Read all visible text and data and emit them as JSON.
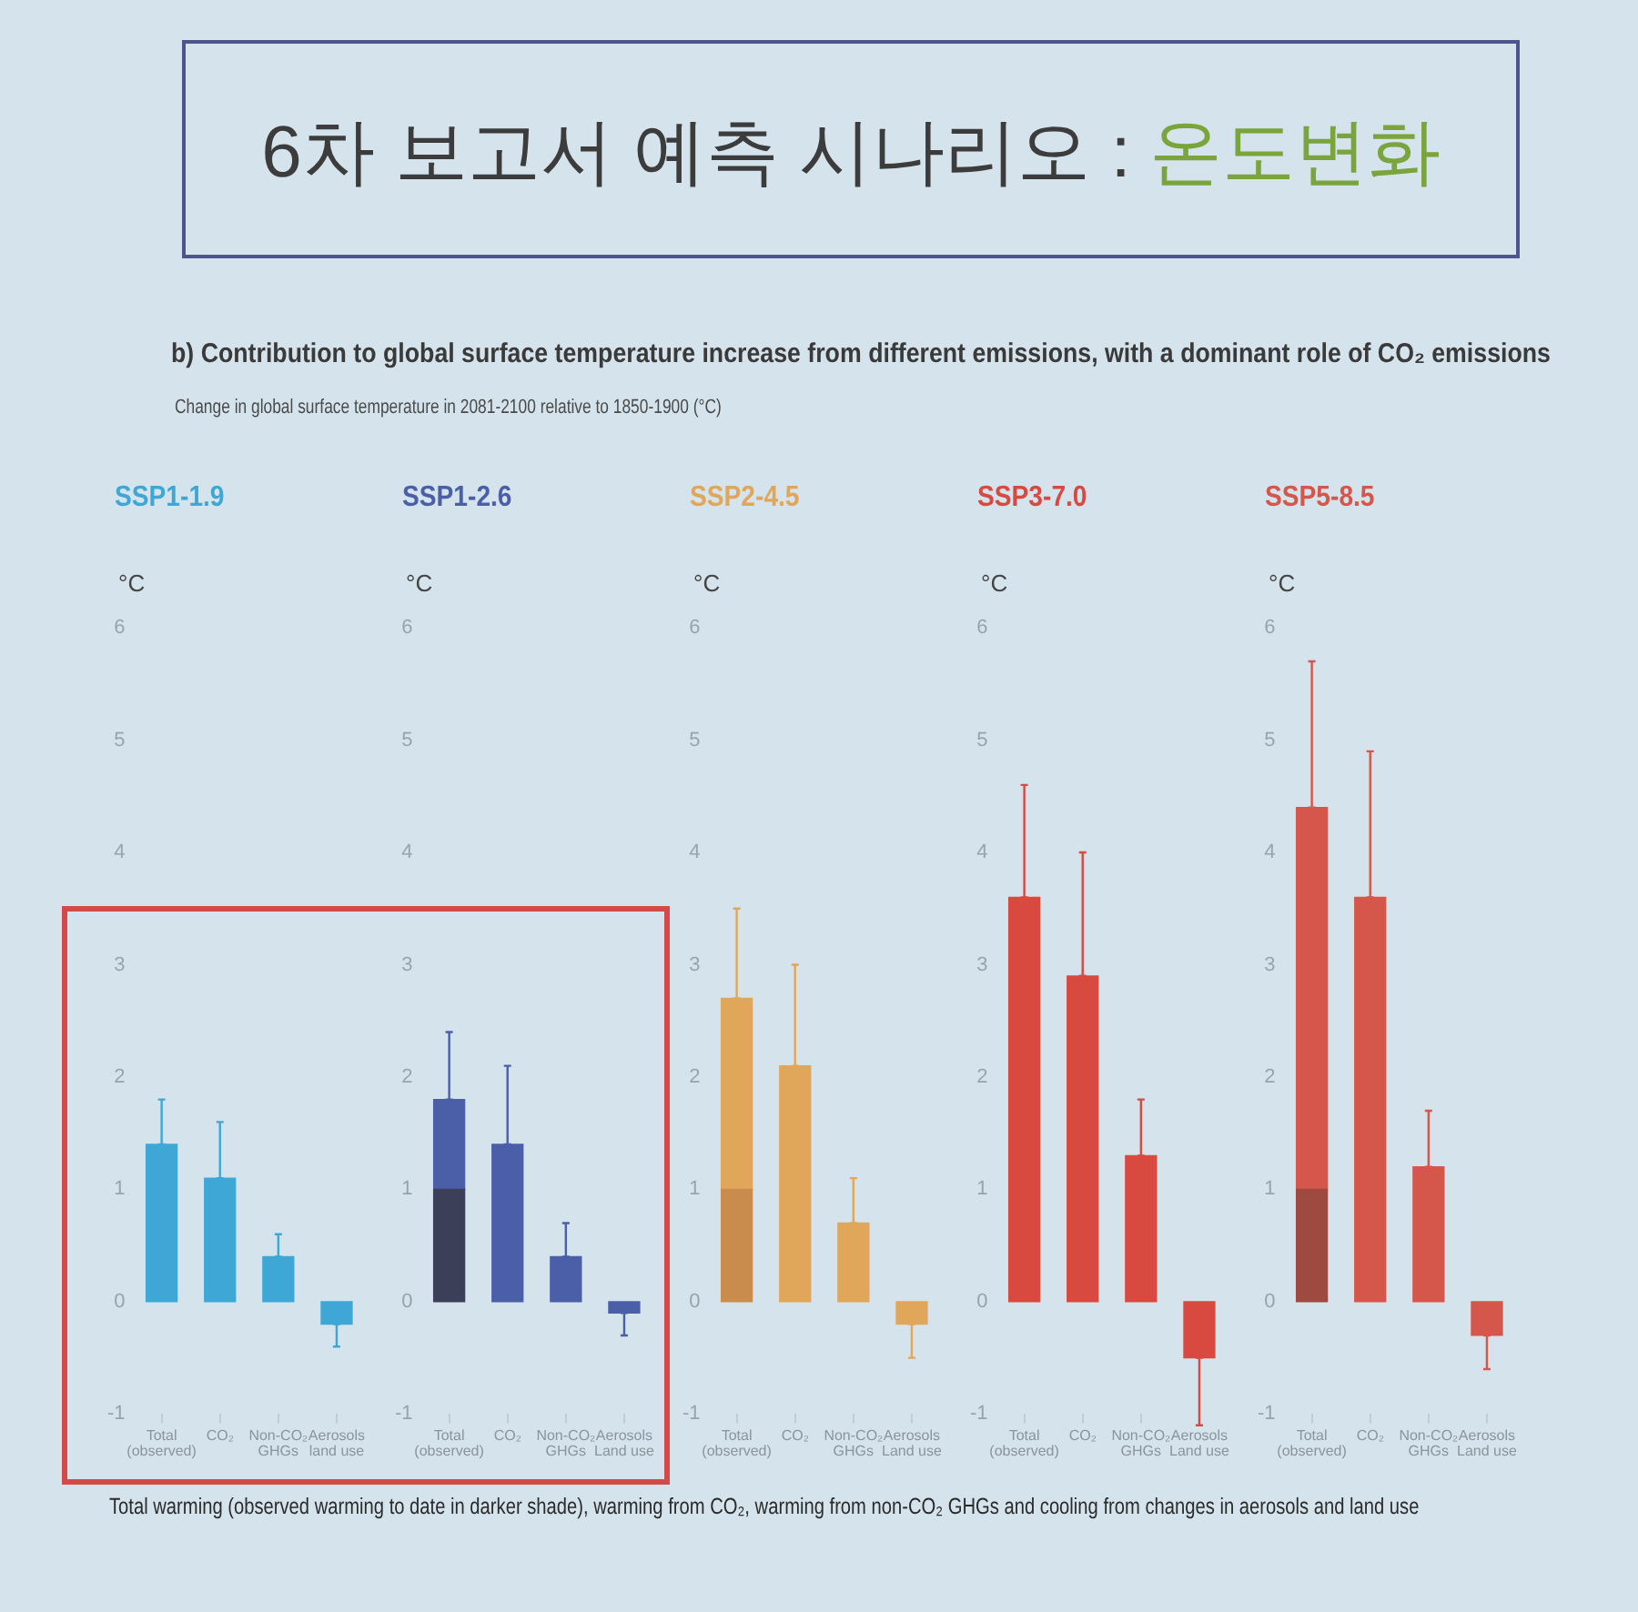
{
  "chart_data": [
    {
      "type": "other",
      "title": "6차 보고서 예측 시나리오 : 온도변화",
      "subtitle": "b) Contribution to global surface temperature increase from different emissions, with a dominant role of CO₂ emissions",
      "annotations": [
        "Change in global surface temperature in 2081-2100 relative to 1850-1900 (°C)"
      ]
    },
    {
      "type": "bar",
      "title": "SSP1-1.9",
      "ylabel": "°C",
      "categories": [
        "Total\n(observed)",
        "CO₂",
        "Non-CO₂\nGHGs",
        "Aerosols\nland use"
      ],
      "series": [
        {
          "color": "#3fa7d6",
          "values": [
            1.4,
            1.1,
            0.4,
            -0.2
          ],
          "errors": [
            [
              1.4,
              1.8
            ],
            [
              1.1,
              1.6
            ],
            [
              0.4,
              0.6
            ],
            [
              -0.4,
              -0.2
            ]
          ]
        }
      ],
      "ylim": [
        -1,
        6
      ],
      "yticks": [
        -1,
        0,
        1,
        2,
        3,
        4,
        5,
        6
      ]
    },
    {
      "type": "bar",
      "title": "SSP1-2.6",
      "ylabel": "°C",
      "categories": [
        "Total\n(observed)",
        "CO₂",
        "Non-CO₂\nGHGs",
        "Aerosols\nLand use"
      ],
      "stacked": true,
      "series": [
        {
          "color": "#3b3f58",
          "values": [
            1.0,
            null,
            null,
            null
          ]
        },
        {
          "color": "#4a5fa8",
          "values": [
            0.8,
            1.4,
            0.4,
            -0.1
          ],
          "errors": [
            [
              1.8,
              2.4
            ],
            [
              1.4,
              2.1
            ],
            [
              0.4,
              0.7
            ],
            [
              -0.3,
              -0.1
            ]
          ]
        }
      ],
      "ylim": [
        -1,
        6
      ],
      "yticks": [
        -1,
        0,
        1,
        2,
        3,
        4,
        5,
        6
      ]
    },
    {
      "type": "bar",
      "title": "SSP2-4.5",
      "ylabel": "°C",
      "categories": [
        "Total\n(observed)",
        "CO₂",
        "Non-CO₂\nGHGs",
        "Aerosols\nLand use"
      ],
      "stacked": true,
      "series": [
        {
          "color": "#c98c4c",
          "values": [
            1.0,
            null,
            null,
            null
          ]
        },
        {
          "color": "#e0a659",
          "values": [
            1.7,
            2.1,
            0.7,
            -0.2
          ],
          "errors": [
            [
              2.7,
              3.5
            ],
            [
              2.1,
              3.0
            ],
            [
              0.7,
              1.1
            ],
            [
              -0.5,
              -0.2
            ]
          ]
        }
      ],
      "ylim": [
        -1,
        6
      ],
      "yticks": [
        -1,
        0,
        1,
        2,
        3,
        4,
        5,
        6
      ]
    },
    {
      "type": "bar",
      "title": "SSP3-7.0",
      "ylabel": "°C",
      "categories": [
        "Total\n(observed)",
        "CO₂",
        "Non-CO₂\nGHGs",
        "Aerosols\nLand use"
      ],
      "series": [
        {
          "color": "#d8493f",
          "values": [
            3.6,
            2.9,
            1.3,
            -0.5
          ],
          "errors": [
            [
              3.6,
              4.6
            ],
            [
              2.9,
              4.0
            ],
            [
              1.3,
              1.8
            ],
            [
              -1.1,
              -0.5
            ]
          ]
        }
      ],
      "ylim": [
        -1,
        6
      ],
      "yticks": [
        -1,
        0,
        1,
        2,
        3,
        4,
        5,
        6
      ]
    },
    {
      "type": "bar",
      "title": "SSP5-8.5",
      "ylabel": "°C",
      "categories": [
        "Total\n(observed)",
        "CO₂",
        "Non-CO₂\nGHGs",
        "Aerosols\nLand use"
      ],
      "stacked": true,
      "series": [
        {
          "color": "#9e4a40",
          "values": [
            1.0,
            null,
            null,
            null
          ]
        },
        {
          "color": "#d5564a",
          "values": [
            3.4,
            3.6,
            1.2,
            -0.3
          ],
          "errors": [
            [
              4.4,
              5.7
            ],
            [
              3.6,
              4.9
            ],
            [
              1.2,
              1.7
            ],
            [
              -0.6,
              -0.3
            ]
          ]
        }
      ],
      "ylim": [
        -1,
        6
      ],
      "yticks": [
        -1,
        0,
        1,
        2,
        3,
        4,
        5,
        6
      ]
    },
    {
      "type": "other",
      "annotations": [
        "Total warming (observed warming to date in darker shade), warming from CO₂, warming from non-CO₂ GHGs and cooling from changes in aerosols and land use"
      ]
    }
  ]
}
